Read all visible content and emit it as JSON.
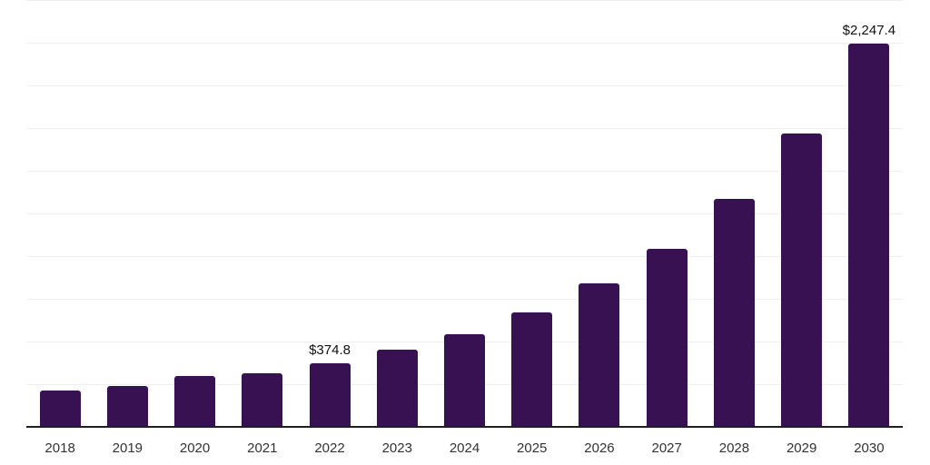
{
  "chart_data": {
    "type": "bar",
    "title": "",
    "xlabel": "",
    "ylabel": "",
    "categories": [
      "2018",
      "2019",
      "2020",
      "2021",
      "2022",
      "2023",
      "2024",
      "2025",
      "2026",
      "2027",
      "2028",
      "2029",
      "2030"
    ],
    "values": [
      213,
      240,
      296,
      314,
      374.8,
      452,
      541,
      670,
      839,
      1043,
      1333,
      1717,
      2247.4
    ],
    "point_labels": [
      "",
      "",
      "",
      "",
      "$374.8",
      "",
      "",
      "",
      "",
      "",
      "",
      "",
      "$2,247.4"
    ],
    "ylim": [
      0,
      2500
    ],
    "grid_interval": 250,
    "grid": true,
    "legend_position": "none"
  },
  "style": {
    "bar_color": "#371151",
    "grid_color": "#f0f0f0",
    "axis_color": "#1f1f1f",
    "tick_label_color": "#333333",
    "data_label_color": "#111111",
    "background": "#ffffff"
  }
}
